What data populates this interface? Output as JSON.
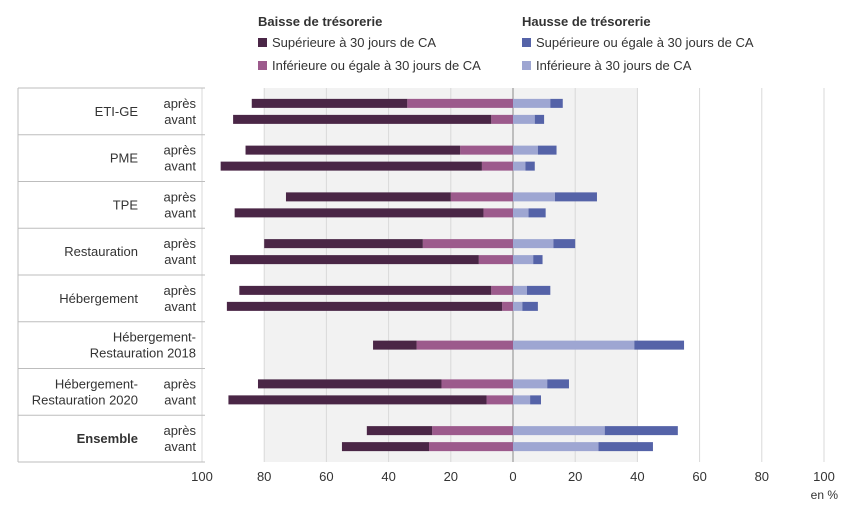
{
  "chart_data": {
    "type": "bar",
    "orientation": "horizontal-diverging",
    "legend": {
      "left_title": "Baisse de trésorerie",
      "right_title": "Hausse de trésorerie",
      "items": [
        {
          "key": "b_sup",
          "label": "Supérieure à 30 jours de CA",
          "color": "#4a2646"
        },
        {
          "key": "b_inf",
          "label": "Inférieure ou égale à 30 jours de CA",
          "color": "#9c5a8c"
        },
        {
          "key": "h_sup",
          "label": "Supérieure ou égale à 30 jours de CA",
          "color": "#5563a8"
        },
        {
          "key": "h_inf",
          "label": "Inférieure à 30 jours de CA",
          "color": "#9ea6d2"
        }
      ]
    },
    "groups": [
      {
        "label": "ETI-GE",
        "bold": false,
        "rows": [
          {
            "label": "après",
            "b_sup": 50,
            "b_inf": 34,
            "h_inf": 12,
            "h_sup": 4
          },
          {
            "label": "avant",
            "b_sup": 83,
            "b_inf": 7,
            "h_inf": 7,
            "h_sup": 3
          }
        ]
      },
      {
        "label": "PME",
        "bold": false,
        "rows": [
          {
            "label": "après",
            "b_sup": 69,
            "b_inf": 17,
            "h_inf": 8,
            "h_sup": 6
          },
          {
            "label": "avant",
            "b_sup": 84,
            "b_inf": 10,
            "h_inf": 4,
            "h_sup": 3
          }
        ]
      },
      {
        "label": "TPE",
        "bold": false,
        "rows": [
          {
            "label": "après",
            "b_sup": 53,
            "b_inf": 20,
            "h_inf": 13.5,
            "h_sup": 13.5
          },
          {
            "label": "avant",
            "b_sup": 80,
            "b_inf": 9.5,
            "h_inf": 5,
            "h_sup": 5.5
          }
        ]
      },
      {
        "label": "Restauration",
        "bold": false,
        "rows": [
          {
            "label": "après",
            "b_sup": 51,
            "b_inf": 29,
            "h_inf": 13,
            "h_sup": 7
          },
          {
            "label": "avant",
            "b_sup": 80,
            "b_inf": 11,
            "h_inf": 6.5,
            "h_sup": 3
          }
        ]
      },
      {
        "label": "Hébergement",
        "bold": false,
        "rows": [
          {
            "label": "après",
            "b_sup": 81,
            "b_inf": 7,
            "h_inf": 4.5,
            "h_sup": 7.5
          },
          {
            "label": "avant",
            "b_sup": 88.5,
            "b_inf": 3.5,
            "h_inf": 3,
            "h_sup": 5
          }
        ]
      },
      {
        "label": "Hébergement-\nRestauration 2018",
        "bold": false,
        "rows": [
          {
            "label": "",
            "b_sup": 14,
            "b_inf": 31,
            "h_inf": 39,
            "h_sup": 16
          }
        ]
      },
      {
        "label": "Hébergement-\nRestauration 2020",
        "bold": false,
        "rows": [
          {
            "label": "après",
            "b_sup": 59,
            "b_inf": 23,
            "h_inf": 11,
            "h_sup": 7
          },
          {
            "label": "avant",
            "b_sup": 83,
            "b_inf": 8.5,
            "h_inf": 5.5,
            "h_sup": 3.5
          }
        ]
      },
      {
        "label": "Ensemble",
        "bold": true,
        "rows": [
          {
            "label": "après",
            "b_sup": 21,
            "b_inf": 26,
            "h_inf": 29.5,
            "h_sup": 23.5
          },
          {
            "label": "avant",
            "b_sup": 28,
            "b_inf": 27,
            "h_inf": 27.5,
            "h_sup": 17.5
          }
        ]
      }
    ],
    "xlim": [
      -100,
      100
    ],
    "x_ticks": [
      -100,
      -80,
      -60,
      -40,
      -20,
      0,
      20,
      40,
      60,
      80,
      100
    ],
    "x_tick_labels": [
      "100",
      "80",
      "60",
      "40",
      "20",
      "0",
      "20",
      "40",
      "60",
      "80",
      "100"
    ],
    "x_unit": "en %",
    "shaded_band": [
      -80,
      40
    ],
    "grid": true
  }
}
